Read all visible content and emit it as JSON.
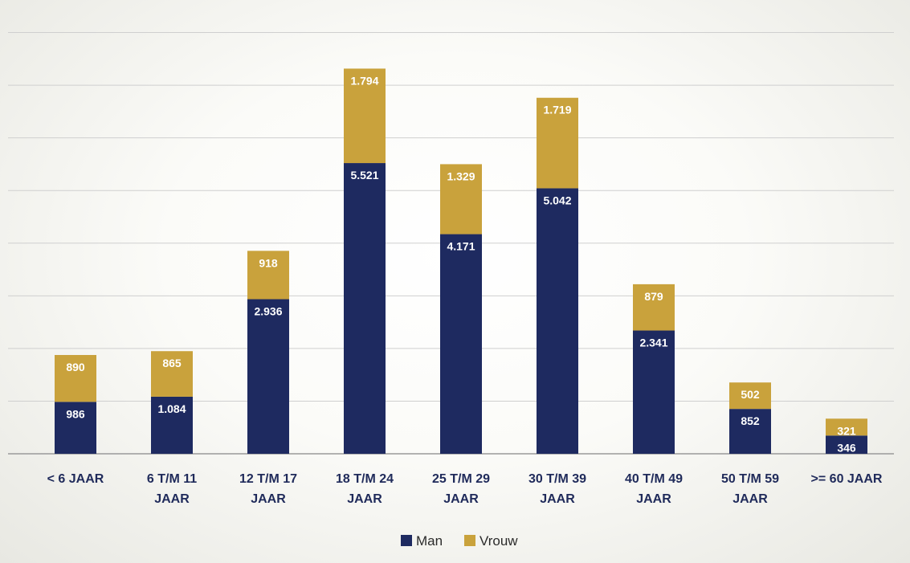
{
  "chart_data": {
    "type": "bar",
    "stacked": true,
    "categories": [
      [
        "< 6 JAAR"
      ],
      [
        "6 T/M 11",
        "JAAR"
      ],
      [
        "12 T/M 17",
        "JAAR"
      ],
      [
        "18 T/M 24",
        "JAAR"
      ],
      [
        "25 T/M 29",
        "JAAR"
      ],
      [
        "30 T/M 39",
        "JAAR"
      ],
      [
        "40 T/M 49",
        "JAAR"
      ],
      [
        "50 T/M 59",
        "JAAR"
      ],
      [
        ">= 60 JAAR"
      ]
    ],
    "series": [
      {
        "name": "Man",
        "color": "#1e2a60",
        "values": [
          986,
          1084,
          2936,
          5521,
          4171,
          5042,
          2341,
          852,
          346
        ],
        "labels": [
          "986",
          "1.084",
          "2.936",
          "5.521",
          "4.171",
          "5.042",
          "2.341",
          "852",
          "346"
        ]
      },
      {
        "name": "Vrouw",
        "color": "#c9a23c",
        "values": [
          890,
          865,
          918,
          1794,
          1329,
          1719,
          879,
          502,
          321
        ],
        "labels": [
          "890",
          "865",
          "918",
          "1.794",
          "1.329",
          "1.719",
          "879",
          "502",
          "321"
        ]
      }
    ],
    "ylim": [
      0,
      8000
    ],
    "grid": true,
    "legend_position": "bottom"
  }
}
